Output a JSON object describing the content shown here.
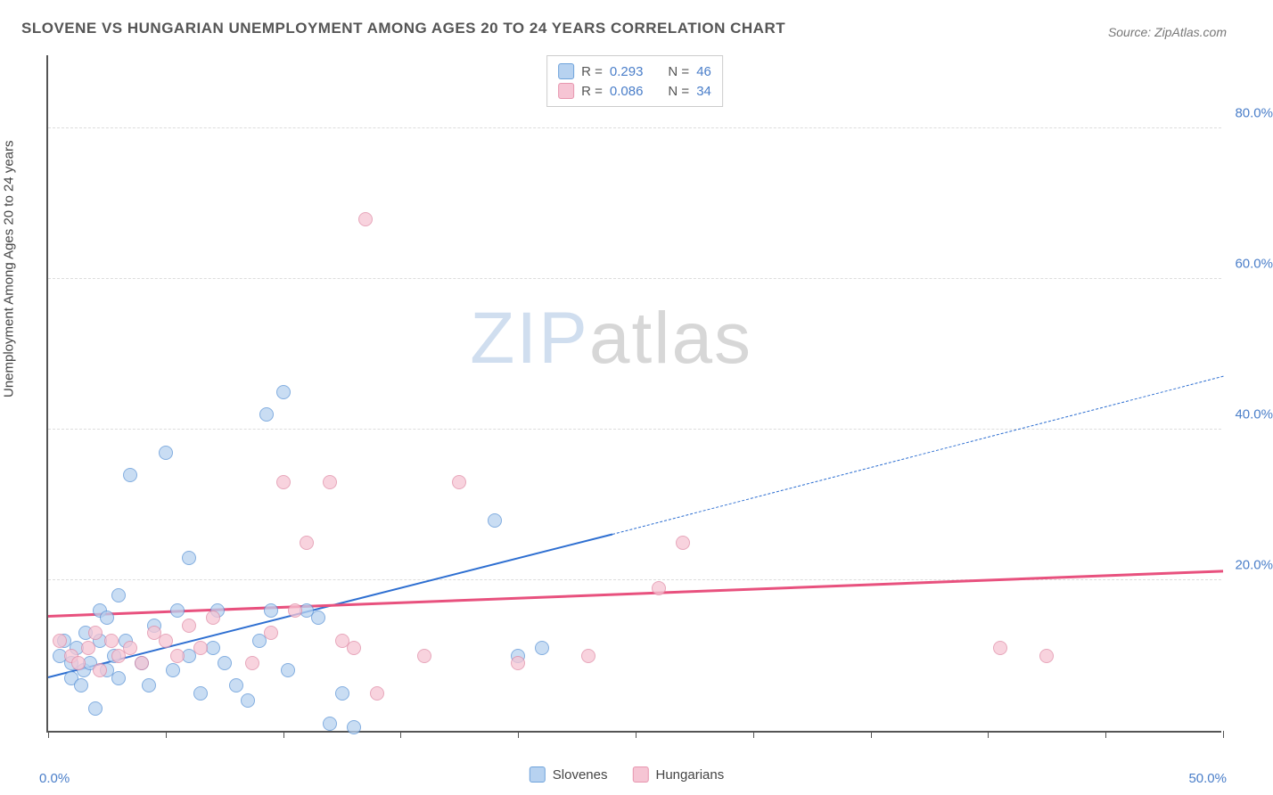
{
  "title": "SLOVENE VS HUNGARIAN UNEMPLOYMENT AMONG AGES 20 TO 24 YEARS CORRELATION CHART",
  "source": "Source: ZipAtlas.com",
  "y_axis_title": "Unemployment Among Ages 20 to 24 years",
  "x_axis": {
    "min": 0,
    "max": 50,
    "label_min": "0.0%",
    "label_max": "50.0%",
    "ticks_pct": [
      0,
      10,
      20,
      30,
      40,
      50,
      60,
      70,
      80,
      90,
      100
    ]
  },
  "y_axis": {
    "min": 0,
    "max": 90,
    "gridlines": [
      20,
      40,
      60,
      80
    ],
    "labels": [
      "20.0%",
      "40.0%",
      "60.0%",
      "80.0%"
    ]
  },
  "series": [
    {
      "name": "Slovenes",
      "fill": "#b7d2f0",
      "stroke": "#5a93d6",
      "legend_swatch_fill": "#b7d2f0",
      "legend_swatch_stroke": "#6fa3db",
      "r_label": "R =",
      "r_value": "0.293",
      "n_label": "N =",
      "n_value": "46",
      "trend": {
        "x1": 0,
        "y1": 7,
        "x2": 24,
        "y2": 26,
        "x2_ext": 50,
        "y2_ext": 47,
        "stroke": "#2e6fd1",
        "width": 2.5
      },
      "points": [
        [
          0.5,
          10
        ],
        [
          0.7,
          12
        ],
        [
          1,
          7
        ],
        [
          1,
          9
        ],
        [
          1.2,
          11
        ],
        [
          1.4,
          6
        ],
        [
          1.5,
          8
        ],
        [
          1.6,
          13
        ],
        [
          1.8,
          9
        ],
        [
          2,
          3
        ],
        [
          2.2,
          16
        ],
        [
          2.2,
          12
        ],
        [
          2.5,
          15
        ],
        [
          2.5,
          8
        ],
        [
          2.8,
          10
        ],
        [
          3,
          18
        ],
        [
          3,
          7
        ],
        [
          3.3,
          12
        ],
        [
          3.5,
          34
        ],
        [
          4,
          9
        ],
        [
          4.3,
          6
        ],
        [
          4.5,
          14
        ],
        [
          5,
          37
        ],
        [
          5.3,
          8
        ],
        [
          5.5,
          16
        ],
        [
          6,
          23
        ],
        [
          6,
          10
        ],
        [
          6.5,
          5
        ],
        [
          7,
          11
        ],
        [
          7.2,
          16
        ],
        [
          7.5,
          9
        ],
        [
          8,
          6
        ],
        [
          8.5,
          4
        ],
        [
          9,
          12
        ],
        [
          9.3,
          42
        ],
        [
          9.5,
          16
        ],
        [
          10,
          45
        ],
        [
          10.2,
          8
        ],
        [
          11,
          16
        ],
        [
          11.5,
          15
        ],
        [
          12,
          1
        ],
        [
          12.5,
          5
        ],
        [
          13,
          0.5
        ],
        [
          19,
          28
        ],
        [
          20,
          10
        ],
        [
          21,
          11
        ]
      ]
    },
    {
      "name": "Hungarians",
      "fill": "#f6c5d4",
      "stroke": "#e08aa5",
      "legend_swatch_fill": "#f6c5d4",
      "legend_swatch_stroke": "#e796af",
      "r_label": "R =",
      "r_value": "0.086",
      "n_label": "N =",
      "n_value": "34",
      "trend": {
        "x1": 0,
        "y1": 15,
        "x2": 50,
        "y2": 21,
        "stroke": "#e8517e",
        "width": 3
      },
      "points": [
        [
          0.5,
          12
        ],
        [
          1,
          10
        ],
        [
          1.3,
          9
        ],
        [
          1.7,
          11
        ],
        [
          2,
          13
        ],
        [
          2.2,
          8
        ],
        [
          2.7,
          12
        ],
        [
          3,
          10
        ],
        [
          3.5,
          11
        ],
        [
          4,
          9
        ],
        [
          4.5,
          13
        ],
        [
          5,
          12
        ],
        [
          5.5,
          10
        ],
        [
          6,
          14
        ],
        [
          6.5,
          11
        ],
        [
          7,
          15
        ],
        [
          8.7,
          9
        ],
        [
          9.5,
          13
        ],
        [
          10,
          33
        ],
        [
          10.5,
          16
        ],
        [
          11,
          25
        ],
        [
          12,
          33
        ],
        [
          12.5,
          12
        ],
        [
          13,
          11
        ],
        [
          13.5,
          68
        ],
        [
          14,
          5
        ],
        [
          16,
          10
        ],
        [
          17.5,
          33
        ],
        [
          20,
          9
        ],
        [
          23,
          10
        ],
        [
          26,
          19
        ],
        [
          27,
          25
        ],
        [
          40.5,
          11
        ],
        [
          42.5,
          10
        ]
      ]
    }
  ],
  "watermark": {
    "part1": "ZIP",
    "part2": "atlas"
  },
  "legend_bottom": [
    {
      "label": "Slovenes",
      "fill": "#b7d2f0",
      "stroke": "#6fa3db"
    },
    {
      "label": "Hungarians",
      "fill": "#f6c5d4",
      "stroke": "#e796af"
    }
  ]
}
